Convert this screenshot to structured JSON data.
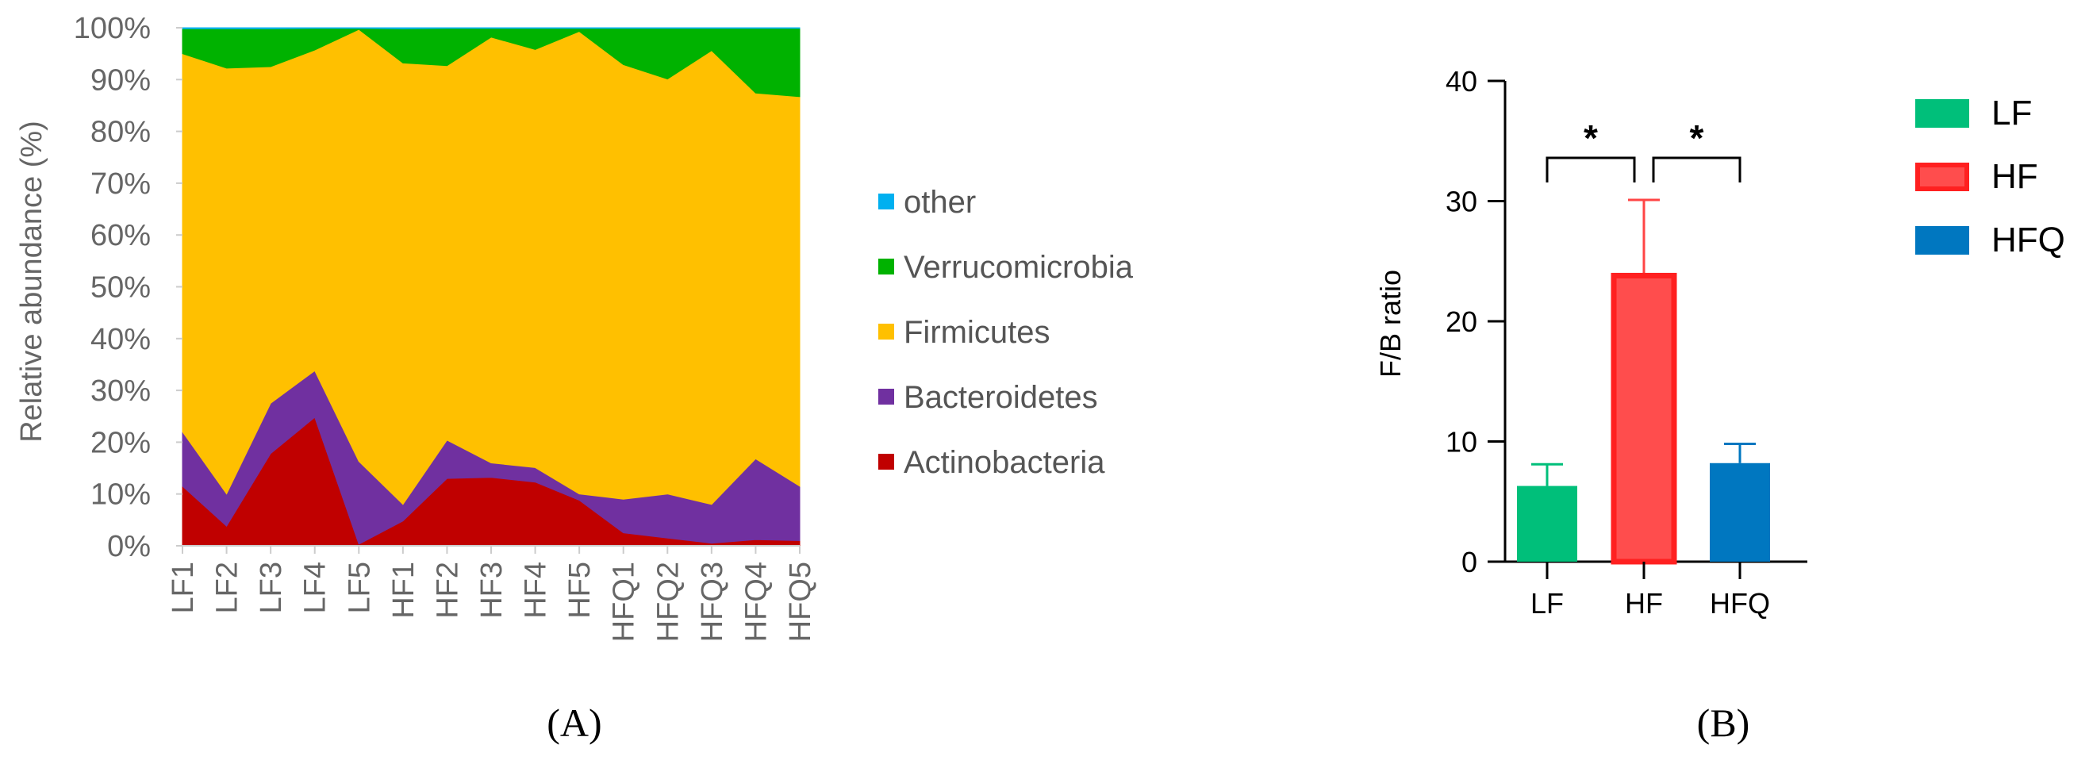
{
  "chart_data": [
    {
      "type": "area",
      "panel_label": "(A)",
      "ylabel": "Relative abundance (%)",
      "ylim": [
        0,
        100
      ],
      "yticks": [
        "0%",
        "10%",
        "20%",
        "30%",
        "40%",
        "50%",
        "60%",
        "70%",
        "80%",
        "90%",
        "100%"
      ],
      "categories": [
        "LF1",
        "LF2",
        "LF3",
        "LF4",
        "LF5",
        "HF1",
        "HF2",
        "HF3",
        "HF4",
        "HF5",
        "HFQ1",
        "HFQ2",
        "HFQ3",
        "HFQ4",
        "HFQ5"
      ],
      "stacked": true,
      "legend_position": "right",
      "series": [
        {
          "name": "Actinobacteria",
          "color": "#c00000",
          "values": [
            11.5,
            3.8,
            17.8,
            24.8,
            0.3,
            4.8,
            13.0,
            13.2,
            12.3,
            8.8,
            2.5,
            1.5,
            0.5,
            1.2,
            1.0
          ]
        },
        {
          "name": "Bacteroidetes",
          "color": "#7030a0",
          "values": [
            10.5,
            6.2,
            9.7,
            9.0,
            16.0,
            3.2,
            7.4,
            2.8,
            2.8,
            1.2,
            6.5,
            8.5,
            7.5,
            15.6,
            10.5
          ]
        },
        {
          "name": "Firmicutes",
          "color": "#ffc000",
          "values": [
            73.0,
            82.2,
            65.0,
            61.9,
            83.4,
            85.2,
            72.3,
            82.2,
            80.7,
            89.3,
            83.9,
            80.1,
            87.6,
            70.6,
            75.2
          ]
        },
        {
          "name": "Verrucomicrobia",
          "color": "#00b200",
          "values": [
            4.8,
            7.6,
            7.3,
            4.2,
            0.2,
            6.6,
            7.2,
            1.7,
            4.1,
            0.6,
            7.0,
            9.8,
            4.3,
            12.5,
            13.2
          ]
        },
        {
          "name": "other",
          "color": "#00b0f0",
          "values": [
            0.2,
            0.2,
            0.2,
            0.1,
            0.1,
            0.2,
            0.1,
            0.1,
            0.1,
            0.1,
            0.1,
            0.1,
            0.1,
            0.1,
            0.1
          ]
        }
      ],
      "legend_order": [
        "other",
        "Verrucomicrobia",
        "Firmicutes",
        "Bacteroidetes",
        "Actinobacteria"
      ]
    },
    {
      "type": "bar",
      "panel_label": "(B)",
      "ylabel": "F/B ratio",
      "ylim": [
        0,
        40
      ],
      "yticks": [
        "0",
        "10",
        "20",
        "30",
        "40"
      ],
      "categories": [
        "LF",
        "HF",
        "HFQ"
      ],
      "values": [
        6.3,
        23.8,
        8.2
      ],
      "error": [
        1.8,
        6.3,
        1.6
      ],
      "colors": [
        "#00bf7a",
        "#ff4545",
        "#0077c0"
      ],
      "significance": [
        {
          "from": "LF",
          "to": "HF",
          "label": "*"
        },
        {
          "from": "HF",
          "to": "HFQ",
          "label": "*"
        }
      ],
      "legend": [
        "LF",
        "HF",
        "HFQ"
      ],
      "legend_position": "right"
    }
  ]
}
